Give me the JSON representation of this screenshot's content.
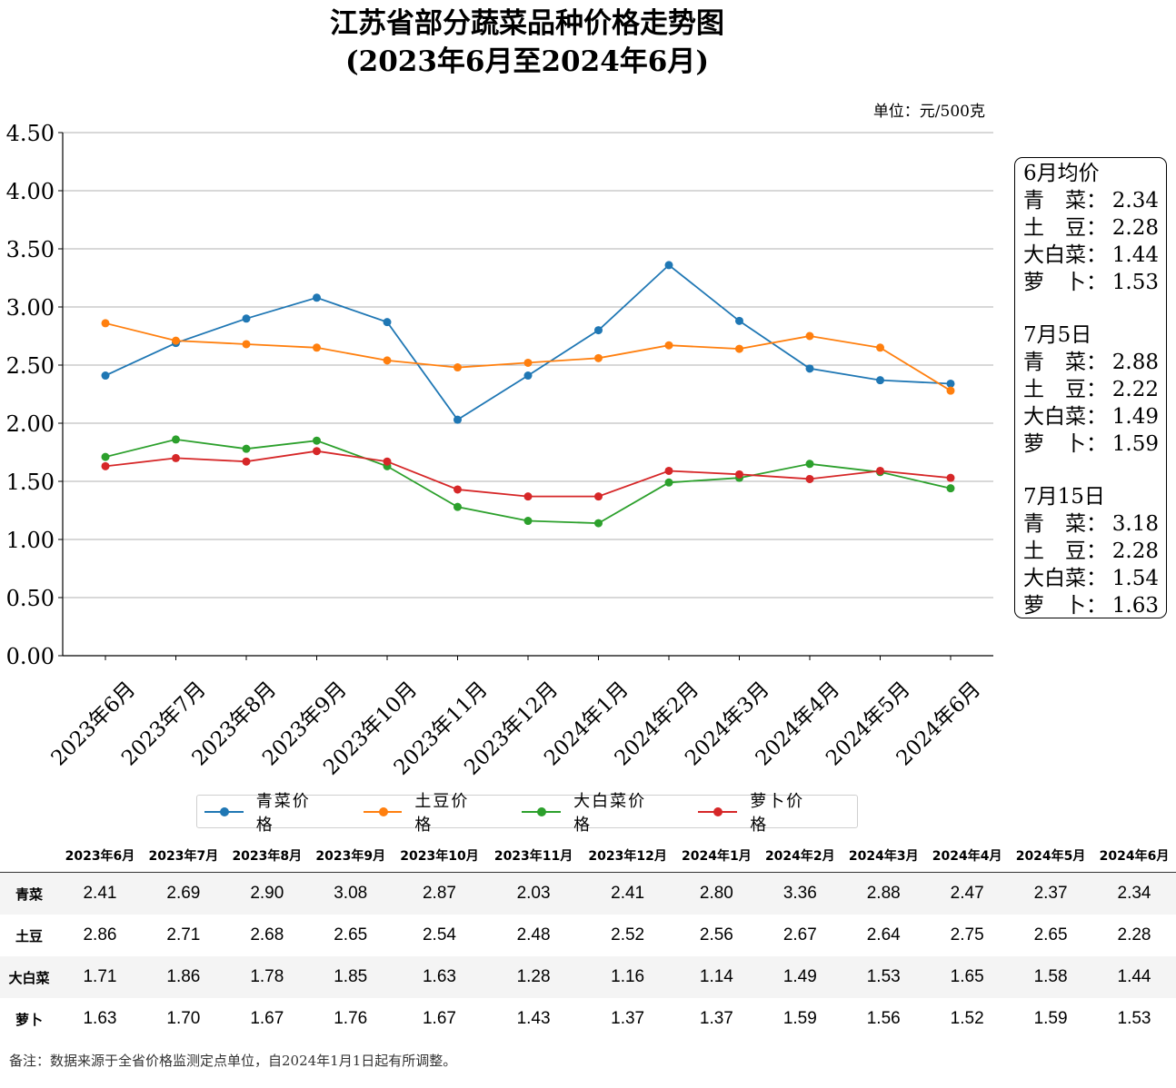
{
  "title_line1": "江苏省部分蔬菜品种价格走势图",
  "title_line2": "(2023年6月至2024年6月)",
  "unit": "单位：元/500克",
  "chart_data": {
    "type": "line",
    "title": "江苏省部分蔬菜品种价格走势图 (2023年6月至2024年6月)",
    "categories": [
      "2023年6月",
      "2023年7月",
      "2023年8月",
      "2023年9月",
      "2023年10月",
      "2023年11月",
      "2023年12月",
      "2024年1月",
      "2024年2月",
      "2024年3月",
      "2024年4月",
      "2024年5月",
      "2024年6月"
    ],
    "series": [
      {
        "name": "青菜价格",
        "color": "#1f77b4",
        "values": [
          2.41,
          2.69,
          2.9,
          3.08,
          2.87,
          2.03,
          2.41,
          2.8,
          3.36,
          2.88,
          2.47,
          2.37,
          2.34
        ]
      },
      {
        "name": "土豆价格",
        "color": "#ff7f0e",
        "values": [
          2.86,
          2.71,
          2.68,
          2.65,
          2.54,
          2.48,
          2.52,
          2.56,
          2.67,
          2.64,
          2.75,
          2.65,
          2.28
        ]
      },
      {
        "name": "大白菜价格",
        "color": "#2ca02c",
        "values": [
          1.71,
          1.86,
          1.78,
          1.85,
          1.63,
          1.28,
          1.16,
          1.14,
          1.49,
          1.53,
          1.65,
          1.58,
          1.44
        ]
      },
      {
        "name": "萝卜价格",
        "color": "#d62728",
        "values": [
          1.63,
          1.7,
          1.67,
          1.76,
          1.67,
          1.43,
          1.37,
          1.37,
          1.59,
          1.56,
          1.52,
          1.59,
          1.53
        ]
      }
    ],
    "ylim": [
      0,
      4.5
    ],
    "yticks": [
      "0.00",
      "0.50",
      "1.00",
      "1.50",
      "2.00",
      "2.50",
      "3.00",
      "3.50",
      "4.00",
      "4.50"
    ],
    "grid": "horizontal",
    "legend": "bottom"
  },
  "infobox": {
    "sections": [
      {
        "heading": "6月均价",
        "rows": [
          {
            "label": "青　菜：",
            "value": "2.34"
          },
          {
            "label": "土　豆：",
            "value": "2.28"
          },
          {
            "label": "大白菜：",
            "value": "1.44"
          },
          {
            "label": "萝　卜：",
            "value": "1.53"
          }
        ]
      },
      {
        "heading": "7月5日",
        "rows": [
          {
            "label": "青　菜：",
            "value": "2.88"
          },
          {
            "label": "土　豆：",
            "value": "2.22"
          },
          {
            "label": "大白菜：",
            "value": "1.49"
          },
          {
            "label": "萝　卜：",
            "value": "1.59"
          }
        ]
      },
      {
        "heading": "7月15日",
        "rows": [
          {
            "label": "青　菜：",
            "value": "3.18"
          },
          {
            "label": "土　豆：",
            "value": "2.28"
          },
          {
            "label": "大白菜：",
            "value": "1.54"
          },
          {
            "label": "萝　卜：",
            "value": "1.63"
          }
        ]
      }
    ]
  },
  "table": {
    "rows": [
      {
        "label": "青菜",
        "values": [
          "2.41",
          "2.69",
          "2.90",
          "3.08",
          "2.87",
          "2.03",
          "2.41",
          "2.80",
          "3.36",
          "2.88",
          "2.47",
          "2.37",
          "2.34"
        ]
      },
      {
        "label": "土豆",
        "values": [
          "2.86",
          "2.71",
          "2.68",
          "2.65",
          "2.54",
          "2.48",
          "2.52",
          "2.56",
          "2.67",
          "2.64",
          "2.75",
          "2.65",
          "2.28"
        ]
      },
      {
        "label": "大白菜",
        "values": [
          "1.71",
          "1.86",
          "1.78",
          "1.85",
          "1.63",
          "1.28",
          "1.16",
          "1.14",
          "1.49",
          "1.53",
          "1.65",
          "1.58",
          "1.44"
        ]
      },
      {
        "label": "萝卜",
        "values": [
          "1.63",
          "1.70",
          "1.67",
          "1.76",
          "1.67",
          "1.43",
          "1.37",
          "1.37",
          "1.59",
          "1.56",
          "1.52",
          "1.59",
          "1.53"
        ]
      }
    ]
  },
  "note": "备注：数据来源于全省价格监测定点单位，自2024年1月1日起有所调整。"
}
